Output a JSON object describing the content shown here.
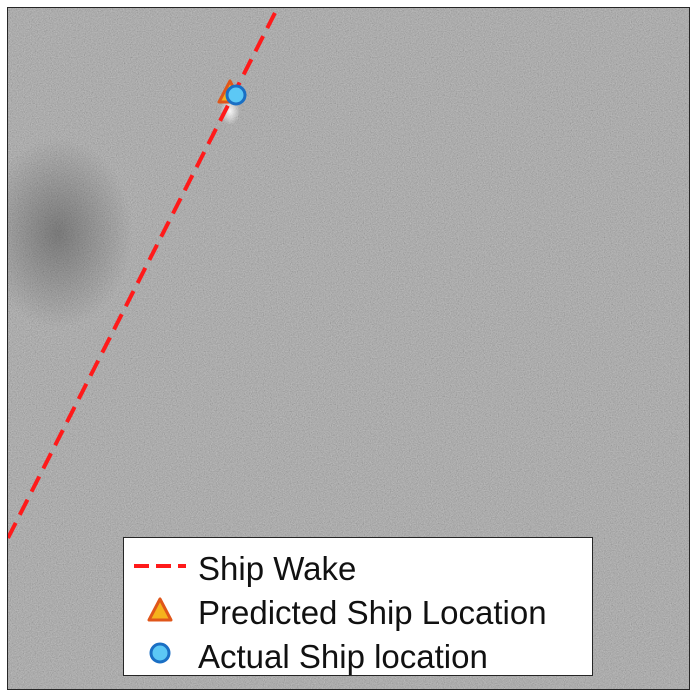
{
  "legend": {
    "wake_label": "Ship Wake",
    "predicted_label": "Predicted Ship Location",
    "actual_label": "Actual Ship location"
  },
  "colors": {
    "wake": "#ff1a1a",
    "predicted_fill": "#f5b21d",
    "predicted_edge": "#e0561a",
    "actual_fill": "#5cc8f5",
    "actual_edge": "#1a6fc4",
    "background": "#9a9a9a"
  },
  "icons": {
    "predicted_marker": "triangle-icon",
    "actual_marker": "circle-icon"
  }
}
